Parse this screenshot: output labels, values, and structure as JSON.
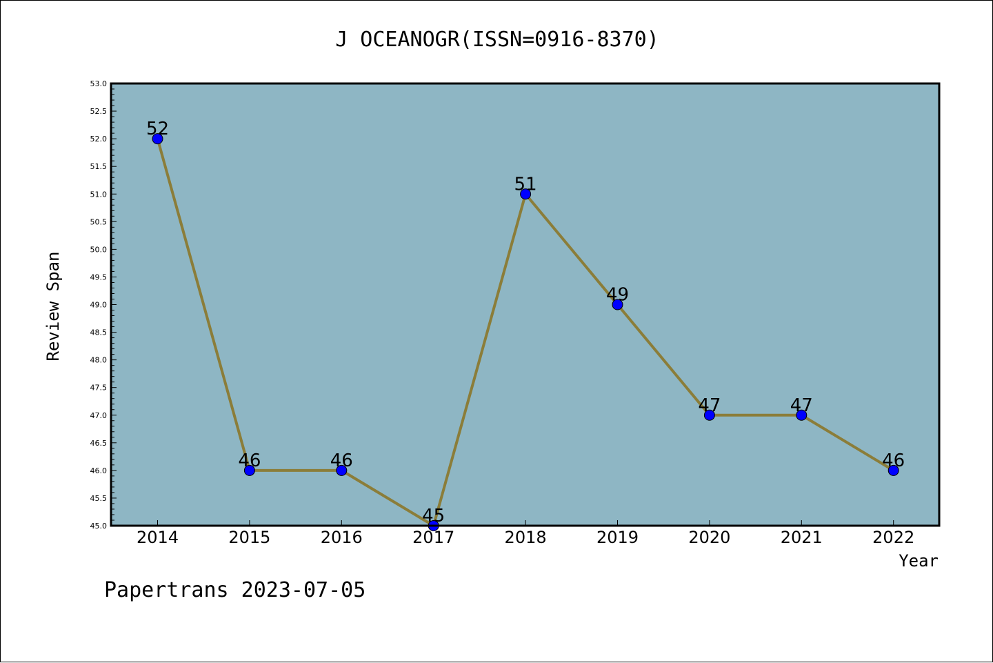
{
  "chart_data": {
    "type": "line",
    "title": "J OCEANOGR(ISSN=0916-8370)",
    "xlabel": "Year",
    "ylabel": "Review Span",
    "categories": [
      "2014",
      "2015",
      "2016",
      "2017",
      "2018",
      "2019",
      "2020",
      "2021",
      "2022"
    ],
    "series": [
      {
        "values": [
          52,
          46,
          46,
          45,
          51,
          49,
          47,
          47,
          46
        ]
      }
    ],
    "data_labels": [
      "52",
      "46",
      "46",
      "45",
      "51",
      "49",
      "47",
      "47",
      "46"
    ],
    "ylim": [
      45.0,
      53.0
    ],
    "yticks": [
      "45.0",
      "45.5",
      "46.0",
      "46.5",
      "47.0",
      "47.5",
      "48.0",
      "48.5",
      "49.0",
      "49.5",
      "50.0",
      "50.5",
      "51.0",
      "51.5",
      "52.0",
      "52.5",
      "53.0"
    ],
    "grid": false,
    "colors": {
      "plot_background": "#8eb6c4",
      "line": "#8b7d39",
      "marker": "#0000ff"
    }
  },
  "footer": "Papertrans 2023-07-05"
}
